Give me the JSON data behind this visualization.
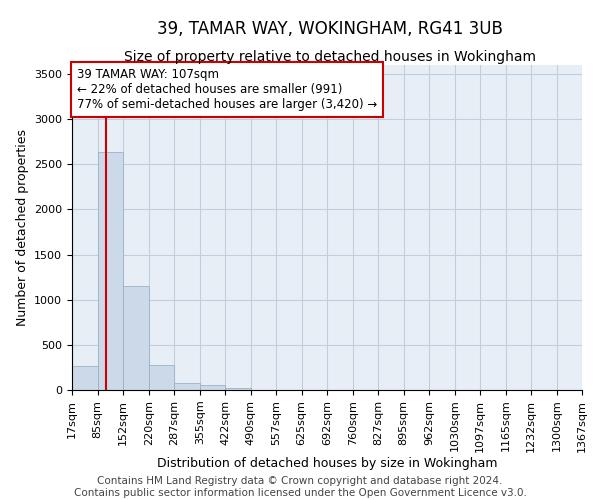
{
  "title": "39, TAMAR WAY, WOKINGHAM, RG41 3UB",
  "subtitle": "Size of property relative to detached houses in Wokingham",
  "xlabel": "Distribution of detached houses by size in Wokingham",
  "ylabel": "Number of detached properties",
  "bar_color": "#ccd9e8",
  "bar_edge_color": "#9ab0c8",
  "grid_color": "#c0cfe0",
  "bg_color": "#e8eef6",
  "property_line_x": 107,
  "property_line_color": "#cc0000",
  "annotation_text": "39 TAMAR WAY: 107sqm\n← 22% of detached houses are smaller (991)\n77% of semi-detached houses are larger (3,420) →",
  "annotation_box_color": "white",
  "annotation_box_edge": "#cc0000",
  "bin_edges": [
    17,
    85,
    152,
    220,
    287,
    355,
    422,
    490,
    557,
    625,
    692,
    760,
    827,
    895,
    962,
    1030,
    1097,
    1165,
    1232,
    1300,
    1367
  ],
  "bin_labels": [
    "17sqm",
    "85sqm",
    "152sqm",
    "220sqm",
    "287sqm",
    "355sqm",
    "422sqm",
    "490sqm",
    "557sqm",
    "625sqm",
    "692sqm",
    "760sqm",
    "827sqm",
    "895sqm",
    "962sqm",
    "1030sqm",
    "1097sqm",
    "1165sqm",
    "1232sqm",
    "1300sqm",
    "1367sqm"
  ],
  "bar_heights": [
    270,
    2640,
    1150,
    280,
    80,
    50,
    20,
    0,
    0,
    0,
    0,
    0,
    0,
    0,
    0,
    0,
    0,
    0,
    0,
    0
  ],
  "ylim": [
    0,
    3600
  ],
  "yticks": [
    0,
    500,
    1000,
    1500,
    2000,
    2500,
    3000,
    3500
  ],
  "footer_text": "Contains HM Land Registry data © Crown copyright and database right 2024.\nContains public sector information licensed under the Open Government Licence v3.0.",
  "title_fontsize": 12,
  "subtitle_fontsize": 10,
  "xlabel_fontsize": 9,
  "ylabel_fontsize": 9,
  "tick_fontsize": 8,
  "annot_fontsize": 8.5,
  "footer_fontsize": 7.5
}
